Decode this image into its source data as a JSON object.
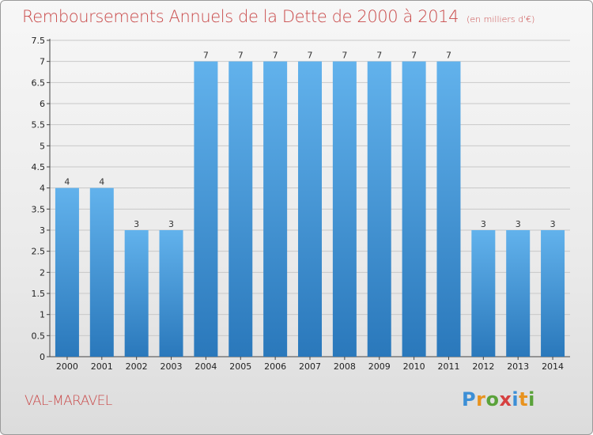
{
  "header": {
    "title": "Remboursements Annuels de la Dette de 2000 à 2014",
    "unit": "(en milliers d'€)"
  },
  "footer": {
    "commune": "VAL-MARAVEL",
    "logo_text": "Proxiti",
    "logo_colors": [
      "#3c8fd6",
      "#e8931f",
      "#5aa23a",
      "#d64040",
      "#3c8fd6",
      "#e8931f",
      "#5aa23a"
    ]
  },
  "colors": {
    "bar_top": "#62b2ec",
    "bar_bottom": "#2a78bb",
    "title": "#c94a4a",
    "grid": "#c8c8c8"
  },
  "chart_data": {
    "type": "bar",
    "title": "Remboursements Annuels de la Dette de 2000 à 2014",
    "subtitle": "(en milliers d'€)",
    "categories": [
      "2000",
      "2001",
      "2002",
      "2003",
      "2004",
      "2005",
      "2006",
      "2007",
      "2008",
      "2009",
      "2010",
      "2011",
      "2012",
      "2013",
      "2014"
    ],
    "values": [
      4,
      4,
      3,
      3,
      7,
      7,
      7,
      7,
      7,
      7,
      7,
      7,
      3,
      3,
      3
    ],
    "data_labels": [
      "4",
      "4",
      "3",
      "3",
      "7",
      "7",
      "7",
      "7",
      "7",
      "7",
      "7",
      "7",
      "3",
      "3",
      "3"
    ],
    "ylim": [
      0,
      7.5
    ],
    "y_ticks": [
      0,
      0.5,
      1,
      1.5,
      2,
      2.5,
      3,
      3.5,
      4,
      4.5,
      5,
      5.5,
      6,
      6.5,
      7,
      7.5
    ],
    "y_tick_labels": [
      "0",
      "0.5",
      "1",
      "1.5",
      "2",
      "2.5",
      "3",
      "3.5",
      "4",
      "4.5",
      "5",
      "5.5",
      "6",
      "6.5",
      "7",
      "7.5"
    ],
    "grid": true,
    "legend": "none"
  }
}
